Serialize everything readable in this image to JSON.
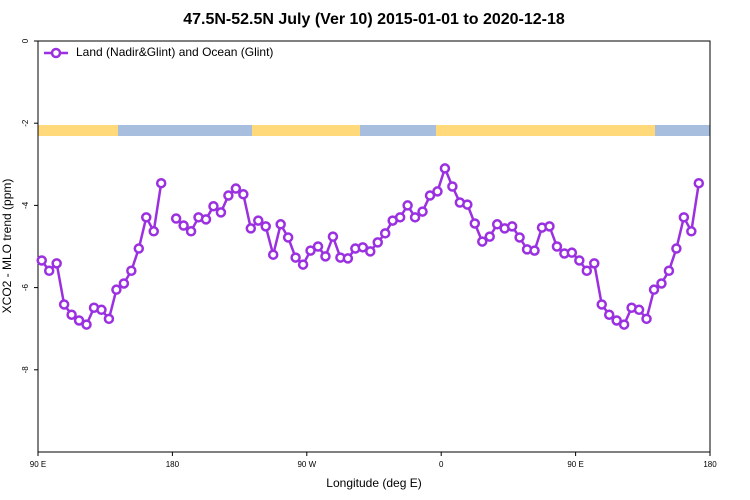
{
  "chart_data": {
    "type": "line",
    "title": "47.5N-52.5N July (Ver 10)   2015-01-01 to 2020-12-18",
    "x_label": "Longitude (deg E)",
    "y_label": "XCO2 - MLO trend (ppm)",
    "x": [
      92.5,
      97.5,
      102.5,
      107.5,
      112.5,
      117.5,
      122.5,
      127.5,
      132.5,
      137.5,
      142.5,
      147.5,
      152.5,
      157.5,
      162.5,
      167.5,
      172.5,
      177.5,
      182.5,
      187.5,
      192.5,
      197.5,
      202.5,
      207.5,
      212.5,
      217.5,
      222.5,
      227.5,
      232.5,
      237.5,
      242.5,
      247.5,
      252.5,
      257.5,
      262.5,
      267.5,
      272.5,
      277.5,
      282.5,
      287.5,
      292.5,
      297.5,
      302.5,
      307.5,
      312.5,
      317.5,
      322.5,
      327.5,
      332.5,
      337.5,
      342.5,
      347.5,
      352.5,
      357.5,
      362.5,
      367.5,
      372.5,
      377.5,
      382.5,
      387.5,
      392.5,
      397.5,
      402.5,
      407.5,
      412.5,
      417.5,
      422.5,
      427.5,
      432.5,
      437.5,
      442.5,
      447.5,
      452.5,
      457.5,
      462.5,
      467.5,
      472.5,
      477.5,
      482.5,
      487.5,
      492.5,
      497.5,
      502.5,
      507.5,
      512.5,
      517.5,
      522.5,
      527.5,
      532.5
    ],
    "series": [
      {
        "name": "Land (Nadir&Glint) and Ocean (Glint)",
        "color": "#9b30e0",
        "values": [
          -5.34,
          -5.59,
          -5.41,
          -6.41,
          -6.66,
          -6.8,
          -6.9,
          -6.49,
          -6.54,
          -6.76,
          -6.05,
          -5.9,
          -5.59,
          -5.05,
          -4.29,
          -4.63,
          -3.46,
          null,
          -4.32,
          -4.49,
          -4.63,
          -4.29,
          -4.34,
          -4.02,
          -4.17,
          -3.76,
          -3.59,
          -3.73,
          -4.56,
          -4.37,
          -4.51,
          -5.2,
          -4.46,
          -4.78,
          -5.27,
          -5.44,
          -5.1,
          -5.0,
          -5.24,
          -4.76,
          -5.27,
          -5.29,
          -5.05,
          -5.02,
          -5.12,
          -4.9,
          -4.68,
          -4.37,
          -4.29,
          -4.0,
          -4.29,
          -4.15,
          -3.76,
          -3.66,
          -3.1,
          -3.54,
          -3.93,
          -3.98,
          -4.44,
          -4.88,
          -4.76,
          -4.46,
          -4.56,
          -4.51,
          -4.78,
          -5.07,
          -5.1,
          -4.54,
          -4.51,
          -5.0,
          -5.17,
          -5.15,
          -5.34,
          -5.59,
          -5.41,
          -6.41,
          -6.66,
          -6.8,
          -6.9,
          -6.49,
          -6.54,
          -6.76,
          -6.05,
          -5.9,
          -5.59,
          -5.05,
          -4.29,
          -4.63,
          -3.46
        ]
      }
    ],
    "xlim": [
      90,
      540
    ],
    "xticks": [
      {
        "value": 90,
        "label": "90 E"
      },
      180,
      {
        "value": 270,
        "label": "90 W"
      },
      {
        "value": 360,
        "label": "0"
      },
      {
        "value": 450,
        "label": "90 E"
      },
      {
        "value": 540,
        "label": "180"
      }
    ],
    "ylim": [
      -10,
      0
    ],
    "yticks": [
      0,
      -2,
      -4,
      -6,
      -8
    ],
    "legend": "top-left"
  }
}
